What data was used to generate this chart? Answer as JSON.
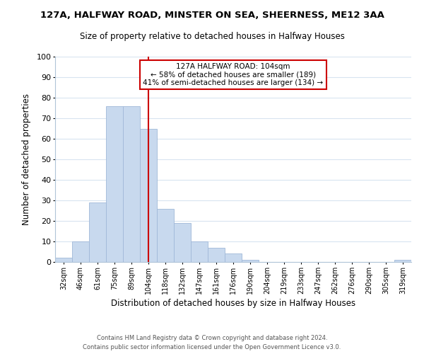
{
  "title": "127A, HALFWAY ROAD, MINSTER ON SEA, SHEERNESS, ME12 3AA",
  "subtitle": "Size of property relative to detached houses in Halfway Houses",
  "xlabel": "Distribution of detached houses by size in Halfway Houses",
  "ylabel": "Number of detached properties",
  "footer_line1": "Contains HM Land Registry data © Crown copyright and database right 2024.",
  "footer_line2": "Contains public sector information licensed under the Open Government Licence v3.0.",
  "bin_labels": [
    "32sqm",
    "46sqm",
    "61sqm",
    "75sqm",
    "89sqm",
    "104sqm",
    "118sqm",
    "132sqm",
    "147sqm",
    "161sqm",
    "176sqm",
    "190sqm",
    "204sqm",
    "219sqm",
    "233sqm",
    "247sqm",
    "262sqm",
    "276sqm",
    "290sqm",
    "305sqm",
    "319sqm"
  ],
  "bar_heights": [
    2,
    10,
    29,
    76,
    76,
    65,
    26,
    19,
    10,
    7,
    4,
    1,
    0,
    0,
    0,
    0,
    0,
    0,
    0,
    0,
    1
  ],
  "bar_color": "#c8d9ee",
  "bar_edge_color": "#a0b8d8",
  "marker_bin_index": 5,
  "marker_color": "#cc0000",
  "annotation_title": "127A HALFWAY ROAD: 104sqm",
  "annotation_line1": "← 58% of detached houses are smaller (189)",
  "annotation_line2": "41% of semi-detached houses are larger (134) →",
  "annotation_box_color": "#ffffff",
  "annotation_box_edgecolor": "#cc0000",
  "ylim": [
    0,
    100
  ],
  "yticks": [
    0,
    10,
    20,
    30,
    40,
    50,
    60,
    70,
    80,
    90,
    100
  ],
  "grid_color": "#d8e4f0",
  "background_color": "#ffffff"
}
